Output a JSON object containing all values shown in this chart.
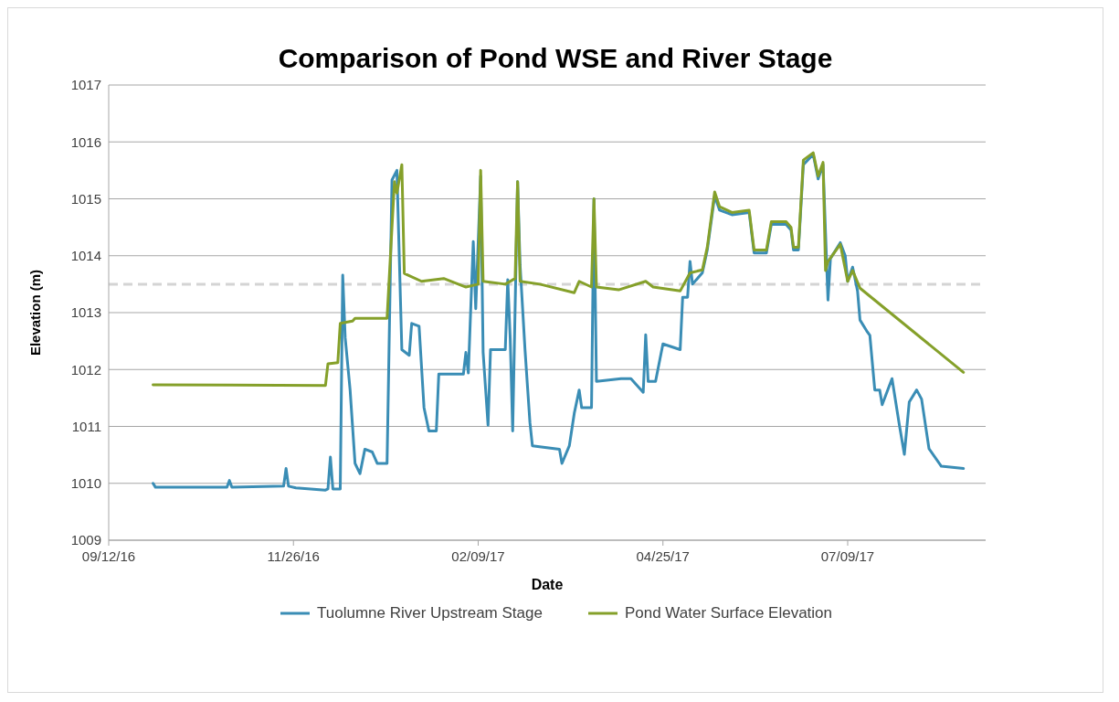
{
  "chart_data": {
    "type": "line",
    "title": "Comparison of Pond WSE and River Stage",
    "xlabel": "Date",
    "ylabel": "Elevation (m)",
    "xlim": [
      "2016-09-12",
      "2017-09-03"
    ],
    "xticks": [
      {
        "value": "2016-09-12",
        "label": "09/12/16"
      },
      {
        "value": "2016-11-26",
        "label": "11/26/16"
      },
      {
        "value": "2017-02-09",
        "label": "02/09/17"
      },
      {
        "value": "2017-04-25",
        "label": "04/25/17"
      },
      {
        "value": "2017-07-09",
        "label": "07/09/17"
      }
    ],
    "ylim": [
      1009,
      1017
    ],
    "yticks": [
      1009,
      1010,
      1011,
      1012,
      1013,
      1014,
      1015,
      1016,
      1017
    ],
    "grid": "y",
    "legend": "bottom",
    "ref_lines": [
      {
        "axis": "y",
        "value": 1013.5,
        "color": "#d4d4d4",
        "line_style": "dashed"
      }
    ],
    "series": [
      {
        "name": "Tuolumne River Upstream Stage",
        "color": "#3a8db5",
        "x": [
          "2016-09-30",
          "2016-10-01",
          "2016-10-30",
          "2016-10-31",
          "2016-11-01",
          "2016-11-22",
          "2016-11-23",
          "2016-11-24",
          "2016-11-27",
          "2016-12-09",
          "2016-12-10",
          "2016-12-11",
          "2016-12-12",
          "2016-12-15",
          "2016-12-16",
          "2016-12-17",
          "2016-12-19",
          "2016-12-21",
          "2016-12-23",
          "2016-12-25",
          "2016-12-28",
          "2016-12-30",
          "2017-01-03",
          "2017-01-05",
          "2017-01-07",
          "2017-01-09",
          "2017-01-12",
          "2017-01-13",
          "2017-01-16",
          "2017-01-18",
          "2017-01-20",
          "2017-01-23",
          "2017-01-24",
          "2017-02-03",
          "2017-02-04",
          "2017-02-05",
          "2017-02-07",
          "2017-02-08",
          "2017-02-10",
          "2017-02-11",
          "2017-02-13",
          "2017-02-14",
          "2017-02-20",
          "2017-02-21",
          "2017-02-22",
          "2017-02-23",
          "2017-02-25",
          "2017-02-26",
          "2017-02-28",
          "2017-03-02",
          "2017-03-03",
          "2017-03-14",
          "2017-03-15",
          "2017-03-18",
          "2017-03-20",
          "2017-03-22",
          "2017-03-23",
          "2017-03-27",
          "2017-03-28",
          "2017-03-29",
          "2017-04-08",
          "2017-04-12",
          "2017-04-17",
          "2017-04-18",
          "2017-04-19",
          "2017-04-22",
          "2017-04-25",
          "2017-05-02",
          "2017-05-03",
          "2017-05-05",
          "2017-05-06",
          "2017-05-07",
          "2017-05-11",
          "2017-05-13",
          "2017-05-16",
          "2017-05-18",
          "2017-05-23",
          "2017-05-30",
          "2017-06-01",
          "2017-06-06",
          "2017-06-08",
          "2017-06-14",
          "2017-06-16",
          "2017-06-17",
          "2017-06-19",
          "2017-06-21",
          "2017-06-25",
          "2017-06-27",
          "2017-06-29",
          "2017-07-01",
          "2017-07-02",
          "2017-07-06",
          "2017-07-08",
          "2017-07-09",
          "2017-07-11",
          "2017-07-13",
          "2017-07-14",
          "2017-07-17",
          "2017-07-18",
          "2017-07-20",
          "2017-07-22",
          "2017-07-23",
          "2017-07-27",
          "2017-07-30",
          "2017-08-01",
          "2017-08-03",
          "2017-08-06",
          "2017-08-08",
          "2017-08-11",
          "2017-08-16",
          "2017-08-25"
        ],
        "values": [
          1010.0,
          1009.93,
          1009.93,
          1010.05,
          1009.93,
          1009.95,
          1010.26,
          1009.95,
          1009.92,
          1009.88,
          1009.9,
          1010.46,
          1009.9,
          1009.9,
          1013.66,
          1012.56,
          1011.64,
          1010.35,
          1010.17,
          1010.6,
          1010.55,
          1010.35,
          1010.35,
          1015.33,
          1015.5,
          1012.35,
          1012.25,
          1012.81,
          1012.76,
          1011.33,
          1010.92,
          1010.92,
          1011.92,
          1011.92,
          1012.3,
          1011.94,
          1014.25,
          1013.07,
          1015.4,
          1012.3,
          1011.02,
          1012.35,
          1012.35,
          1013.58,
          1012.55,
          1010.92,
          1015.3,
          1013.84,
          1012.35,
          1011.07,
          1010.66,
          1010.6,
          1010.35,
          1010.66,
          1011.23,
          1011.64,
          1011.33,
          1011.33,
          1015.0,
          1011.79,
          1011.84,
          1011.84,
          1011.6,
          1012.61,
          1011.79,
          1011.79,
          1012.45,
          1012.35,
          1013.27,
          1013.27,
          1013.9,
          1013.5,
          1013.7,
          1014.1,
          1015.05,
          1014.8,
          1014.72,
          1014.76,
          1014.05,
          1014.05,
          1014.55,
          1014.55,
          1014.45,
          1014.1,
          1014.1,
          1015.6,
          1015.78,
          1015.35,
          1015.6,
          1013.22,
          1013.95,
          1014.23,
          1014.0,
          1013.55,
          1013.8,
          1013.38,
          1012.87,
          1012.66,
          1012.6,
          1011.64,
          1011.64,
          1011.38,
          1011.84,
          1011.02,
          1010.51,
          1011.43,
          1011.64,
          1011.48,
          1010.61,
          1010.3,
          1010.26
        ]
      },
      {
        "name": "Pond Water Surface Elevation",
        "color": "#85a02a",
        "x": [
          "2016-09-30",
          "2016-12-09",
          "2016-12-10",
          "2016-12-14",
          "2016-12-15",
          "2016-12-20",
          "2016-12-21",
          "2017-01-03",
          "2017-01-05",
          "2017-01-06",
          "2017-01-07",
          "2017-01-09",
          "2017-01-10",
          "2017-01-12",
          "2017-01-17",
          "2017-01-26",
          "2017-02-04",
          "2017-02-09",
          "2017-02-10",
          "2017-02-11",
          "2017-02-20",
          "2017-02-24",
          "2017-02-25",
          "2017-02-26",
          "2017-03-06",
          "2017-03-20",
          "2017-03-22",
          "2017-03-27",
          "2017-03-28",
          "2017-03-29",
          "2017-04-07",
          "2017-04-18",
          "2017-04-21",
          "2017-05-02",
          "2017-05-06",
          "2017-05-11",
          "2017-05-13",
          "2017-05-16",
          "2017-05-18",
          "2017-05-23",
          "2017-05-30",
          "2017-06-01",
          "2017-06-06",
          "2017-06-08",
          "2017-06-14",
          "2017-06-16",
          "2017-06-17",
          "2017-06-19",
          "2017-06-21",
          "2017-06-25",
          "2017-06-27",
          "2017-06-29",
          "2017-06-30",
          "2017-07-01",
          "2017-07-06",
          "2017-07-09",
          "2017-07-11",
          "2017-07-14",
          "2017-08-25"
        ],
        "values": [
          1011.73,
          1011.72,
          1012.1,
          1012.12,
          1012.81,
          1012.85,
          1012.9,
          1012.9,
          1014.5,
          1015.3,
          1015.1,
          1015.6,
          1013.69,
          1013.65,
          1013.55,
          1013.6,
          1013.45,
          1013.5,
          1015.5,
          1013.55,
          1013.5,
          1013.6,
          1015.3,
          1013.55,
          1013.5,
          1013.35,
          1013.55,
          1013.45,
          1015.0,
          1013.45,
          1013.4,
          1013.55,
          1013.45,
          1013.38,
          1013.7,
          1013.75,
          1014.15,
          1015.12,
          1014.86,
          1014.76,
          1014.8,
          1014.1,
          1014.1,
          1014.6,
          1014.6,
          1014.5,
          1014.15,
          1014.15,
          1015.68,
          1015.81,
          1015.4,
          1015.64,
          1013.74,
          1013.9,
          1014.2,
          1013.55,
          1013.74,
          1013.43,
          1011.95
        ]
      }
    ]
  }
}
